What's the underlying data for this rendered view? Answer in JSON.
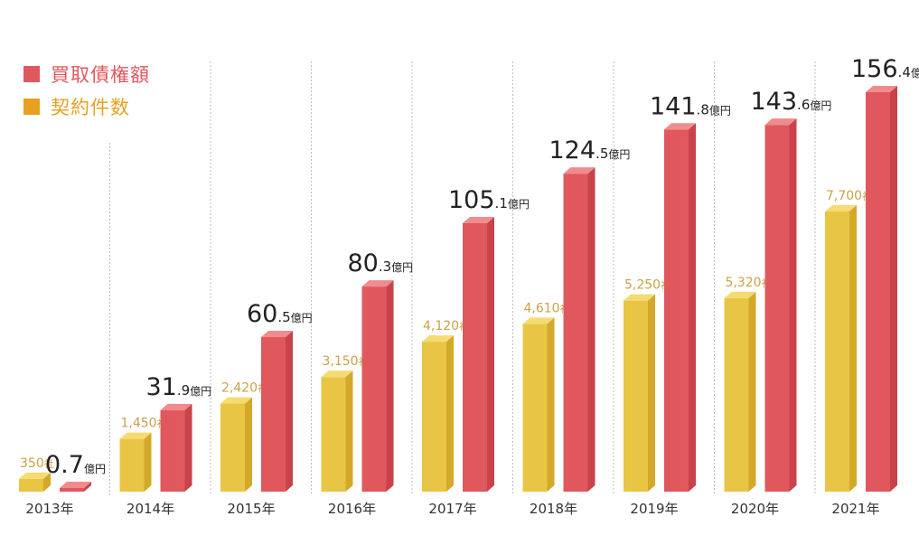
{
  "chart_data": {
    "type": "bar",
    "categories": [
      "2013年",
      "2014年",
      "2015年",
      "2016年",
      "2017年",
      "2018年",
      "2019年",
      "2020年",
      "2021年"
    ],
    "series": [
      {
        "name": "契約件数",
        "unit": "社",
        "color": "#e8c544",
        "side_color": "#d4a829",
        "top_color": "#f5db72",
        "values": [
          350,
          1450,
          2420,
          3150,
          4120,
          4610,
          5250,
          5320,
          7700
        ],
        "labels": [
          "350",
          "1,450",
          "2,420",
          "3,150",
          "4,120",
          "4,610",
          "5,250",
          "5,320",
          "7,700"
        ]
      },
      {
        "name": "買取債権額",
        "unit": "億円",
        "color": "#e0585d",
        "side_color": "#c8434a",
        "top_color": "#f08b8e",
        "values": [
          0.7,
          31.9,
          60.5,
          80.3,
          105.1,
          124.5,
          141.8,
          143.6,
          156.4
        ],
        "int_labels": [
          "0.7",
          "31",
          "60",
          "80",
          "105",
          "124",
          "141",
          "143",
          "156"
        ],
        "dec_labels": [
          "",
          ".9",
          ".5",
          ".3",
          ".1",
          ".5",
          ".8",
          ".6",
          ".4"
        ]
      }
    ],
    "legend": [
      {
        "label": "買取債権額",
        "color": "#e0585d"
      },
      {
        "label": "契約件数",
        "color": "#e8a020"
      }
    ],
    "legend_position": "top-left",
    "title": "",
    "xlabel": "",
    "ylabel": "",
    "grid": false
  }
}
